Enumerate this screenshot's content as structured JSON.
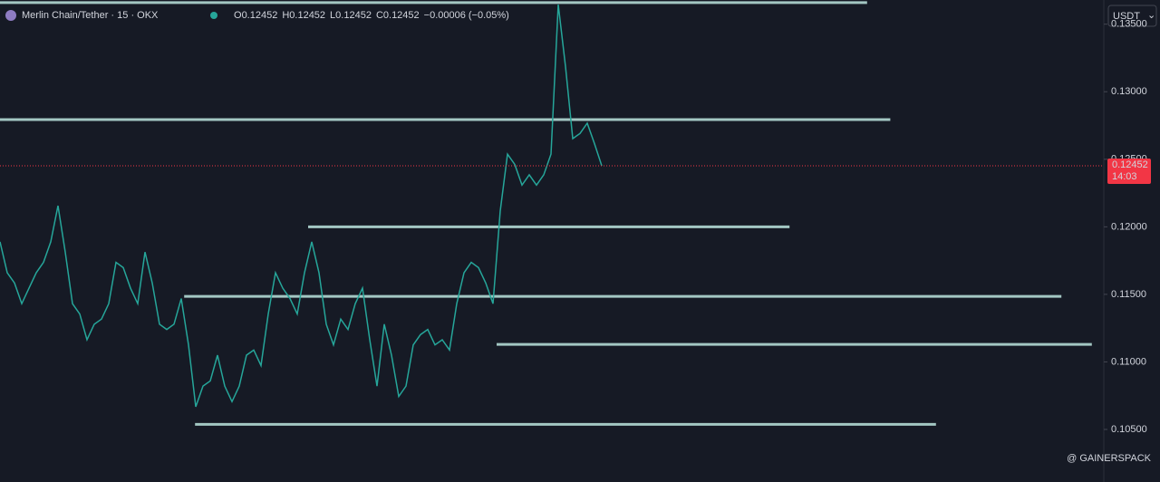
{
  "chart_data": {
    "type": "line",
    "symbol": "Merlin Chain/Tether · 15 · OKX",
    "ohlc": [
      {
        "label": "O",
        "value": 0.12452
      },
      {
        "label": "H",
        "value": 0.12452
      },
      {
        "label": "L",
        "value": 0.12452
      },
      {
        "label": "C",
        "value": 0.12452
      }
    ],
    "change": "−0.00006 (−0.05%)",
    "currency": "USDT",
    "last_price": 0.12452,
    "countdown": "14:03",
    "watermark": "@ GAINERSPACK",
    "color": "#26a69a",
    "level_color": "#a3c7c3",
    "last_color": "#f23645",
    "xlim": [
      0,
      152
    ],
    "ylim": [
      0.10111,
      0.13679
    ],
    "yticks": [
      {
        "value": 0.135,
        "label": "0.13500"
      },
      {
        "value": 0.13,
        "label": "0.13000"
      },
      {
        "value": 0.125,
        "label": "0.12500"
      },
      {
        "value": 0.12,
        "label": "0.12000"
      },
      {
        "value": 0.115,
        "label": "0.11500"
      },
      {
        "value": 0.11,
        "label": "0.11000"
      },
      {
        "value": 0.105,
        "label": "0.10500"
      }
    ],
    "values": [
      0.11889,
      0.1166,
      0.11584,
      0.11431,
      0.11546,
      0.1166,
      0.11737,
      0.11889,
      0.12156,
      0.11813,
      0.11431,
      0.11355,
      0.11164,
      0.11279,
      0.11317,
      0.11431,
      0.11737,
      0.11698,
      0.11546,
      0.11431,
      0.11813,
      0.11584,
      0.11279,
      0.1124,
      0.11279,
      0.11469,
      0.11126,
      0.10668,
      0.10821,
      0.10859,
      0.1105,
      0.10821,
      0.10706,
      0.10821,
      0.1105,
      0.11088,
      0.10973,
      0.11355,
      0.1166,
      0.11546,
      0.11469,
      0.11355,
      0.1166,
      0.11889,
      0.1166,
      0.11279,
      0.11126,
      0.11317,
      0.1124,
      0.11431,
      0.11546,
      0.11164,
      0.10821,
      0.11279,
      0.1105,
      0.10744,
      0.10821,
      0.11126,
      0.11202,
      0.1124,
      0.11126,
      0.11164,
      0.11088,
      0.11431,
      0.1166,
      0.11737,
      0.11698,
      0.11584,
      0.11431,
      0.12118,
      0.12538,
      0.12462,
      0.12309,
      0.12385,
      0.12309,
      0.12385,
      0.12538,
      0.13645,
      0.13187,
      0.12653,
      0.12691,
      0.12767,
      0.12615,
      0.12452
    ],
    "levels": [
      {
        "price": 0.1366,
        "start": 0,
        "end": 119.6
      },
      {
        "price": 0.12794,
        "start": 0,
        "end": 122.8
      },
      {
        "price": 0.12,
        "start": 42.5,
        "end": 108.9
      },
      {
        "price": 0.11485,
        "start": 25.4,
        "end": 146.4
      },
      {
        "price": 0.1113,
        "start": 68.5,
        "end": 150.6
      },
      {
        "price": 0.10538,
        "start": 26.9,
        "end": 129.1
      }
    ]
  }
}
